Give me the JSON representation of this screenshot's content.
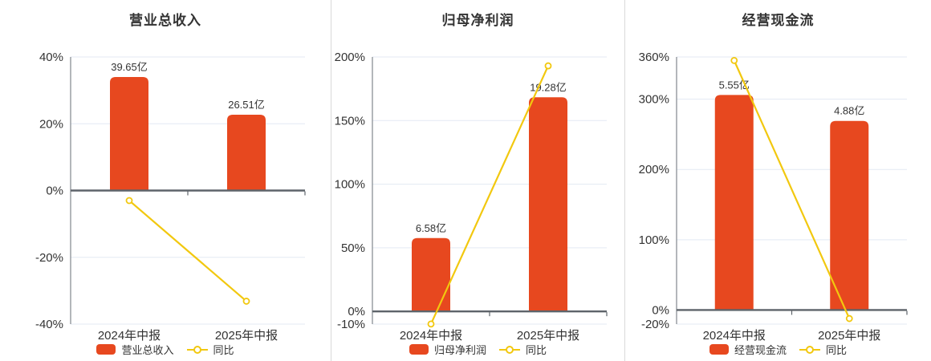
{
  "colors": {
    "bar": "#E7481F",
    "line": "#F2C80F",
    "grid": "#E3E9F3",
    "axis": "#8A9096",
    "zero_line": "#5E646A",
    "text": "#333333",
    "separator": "#D9D9D9",
    "background": "#FFFFFF"
  },
  "chart_data": [
    {
      "type": "bar",
      "title": "营业总收入",
      "categories": [
        "2024年中报",
        "2025年中报"
      ],
      "series": [
        {
          "name": "营业总收入",
          "type": "bar",
          "unit": "亿",
          "values": [
            39.65,
            26.51
          ],
          "data_labels": [
            "39.65亿",
            "26.51亿"
          ],
          "bar_top_on_pct_axis": [
            34.0,
            22.7
          ]
        },
        {
          "name": "同比",
          "type": "line",
          "unit": "%",
          "values": [
            -3.0,
            -33.14
          ]
        }
      ],
      "ylim": [
        -40,
        40
      ],
      "yticks": [
        40,
        20,
        0,
        -20,
        -40
      ],
      "ytick_labels": [
        "40%",
        "20%",
        "0%",
        "-20%",
        "-40%"
      ],
      "grid": true,
      "legend_position": "bottom"
    },
    {
      "type": "bar",
      "title": "归母净利润",
      "categories": [
        "2024年中报",
        "2025年中报"
      ],
      "series": [
        {
          "name": "归母净利润",
          "type": "bar",
          "unit": "亿",
          "values": [
            6.58,
            19.28
          ],
          "data_labels": [
            "6.58亿",
            "19.28亿"
          ],
          "bar_top_on_pct_axis": [
            57.6,
            168.3
          ]
        },
        {
          "name": "同比",
          "type": "line",
          "unit": "%",
          "values": [
            -9.9,
            193.01
          ]
        }
      ],
      "ylim": [
        -10,
        200
      ],
      "yticks": [
        200,
        150,
        100,
        50,
        0,
        -10
      ],
      "ytick_labels": [
        "200%",
        "150%",
        "100%",
        "50%",
        "0%",
        "-10%"
      ],
      "grid": true,
      "legend_position": "bottom"
    },
    {
      "type": "bar",
      "title": "经营现金流",
      "categories": [
        "2024年中报",
        "2025年中报"
      ],
      "series": [
        {
          "name": "经营现金流",
          "type": "bar",
          "unit": "亿",
          "values": [
            5.55,
            4.88
          ],
          "data_labels": [
            "5.55亿",
            "4.88亿"
          ],
          "bar_top_on_pct_axis": [
            306,
            269
          ]
        },
        {
          "name": "同比",
          "type": "line",
          "unit": "%",
          "values": [
            355.0,
            -12.07
          ]
        }
      ],
      "ylim": [
        -20,
        360
      ],
      "yticks": [
        360,
        300,
        200,
        100,
        0,
        -20
      ],
      "ytick_labels": [
        "360%",
        "300%",
        "200%",
        "100%",
        "0%",
        "-20%"
      ],
      "grid": true,
      "legend_position": "bottom"
    }
  ]
}
